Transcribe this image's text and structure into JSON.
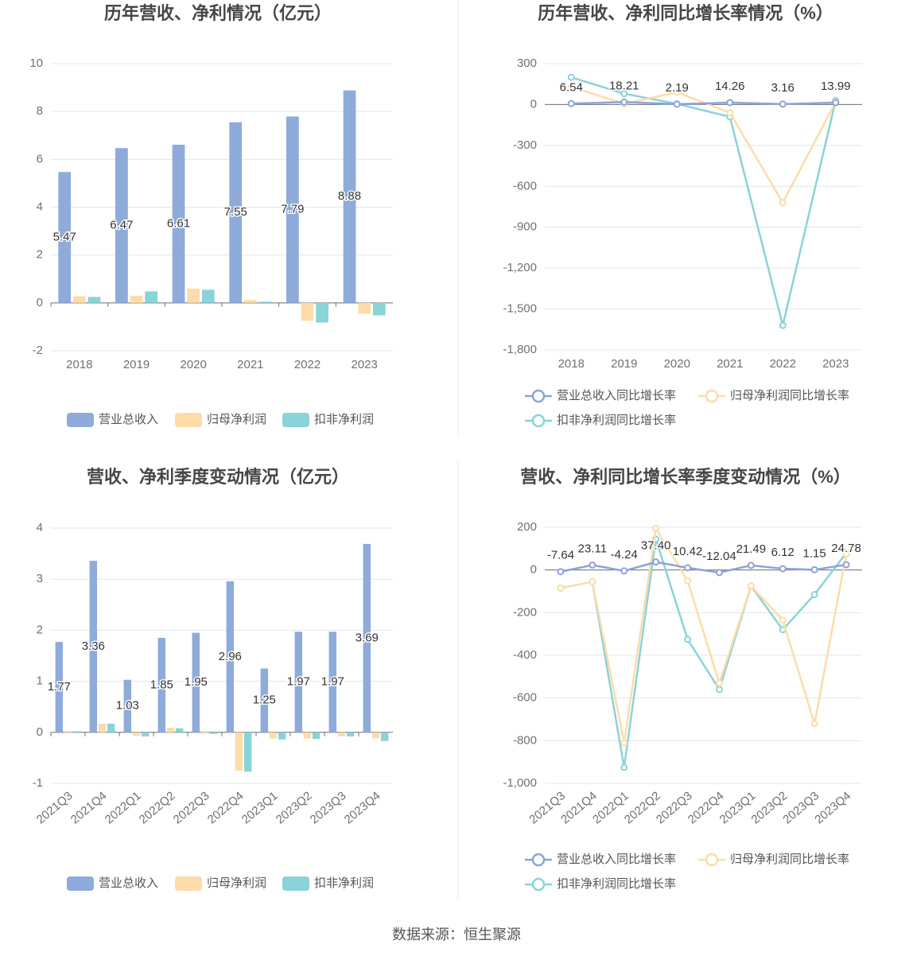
{
  "chart_data": [
    {
      "type": "bar",
      "title": "历年营收、净利情况（亿元）",
      "categories": [
        "2018",
        "2019",
        "2020",
        "2021",
        "2022",
        "2023"
      ],
      "ylim": [
        -2,
        10
      ],
      "yticks": [
        -2,
        0,
        2,
        4,
        6,
        8,
        10
      ],
      "grid": true,
      "series": [
        {
          "name": "营业总收入",
          "color": "#8eabda",
          "data_labels": true,
          "values": [
            5.47,
            6.47,
            6.61,
            7.55,
            7.79,
            8.88
          ]
        },
        {
          "name": "归母净利润",
          "color": "#fddcaa",
          "values": [
            0.28,
            0.3,
            0.6,
            0.12,
            -0.75,
            -0.45
          ]
        },
        {
          "name": "扣非净利润",
          "color": "#8ad3d8",
          "values": [
            0.25,
            0.48,
            0.55,
            0.05,
            -0.82,
            -0.52
          ]
        }
      ]
    },
    {
      "type": "line",
      "title": "历年营收、净利同比增长率情况（%）",
      "categories": [
        "2018",
        "2019",
        "2020",
        "2021",
        "2022",
        "2023"
      ],
      "ylim": [
        -1800,
        300
      ],
      "yticks": [
        {
          "value": -1800,
          "label": "-1,800"
        },
        {
          "value": -1500,
          "label": "-1,500"
        },
        {
          "value": -1200,
          "label": "-1,200"
        },
        -900,
        -600,
        -300,
        0,
        300
      ],
      "grid": true,
      "series": [
        {
          "name": "营业总收入同比增长率",
          "color": "#8ba4d8",
          "data_labels": true,
          "values": [
            6.54,
            18.21,
            2.19,
            14.26,
            3.16,
            13.99
          ]
        },
        {
          "name": "归母净利润同比增长率",
          "color": "#fddcaa",
          "values": [
            130,
            5,
            90,
            -60,
            -720,
            20
          ]
        },
        {
          "name": "扣非净利润同比增长率",
          "color": "#8ad3d8",
          "values": [
            200,
            80,
            5,
            -90,
            -1620,
            30
          ]
        }
      ]
    },
    {
      "type": "bar",
      "title": "营收、净利季度变动情况（亿元）",
      "categories": [
        "2021Q3",
        "2021Q4",
        "2022Q1",
        "2022Q2",
        "2022Q3",
        "2022Q4",
        "2023Q1",
        "2023Q2",
        "2023Q3",
        "2023Q4"
      ],
      "ylim": [
        -1,
        4
      ],
      "yticks": [
        -1,
        0,
        1,
        2,
        3,
        4
      ],
      "grid": true,
      "series": [
        {
          "name": "营业总收入",
          "color": "#8eabda",
          "data_labels": true,
          "values": [
            1.77,
            3.36,
            1.03,
            1.85,
            1.95,
            2.96,
            1.25,
            1.97,
            1.97,
            3.69
          ]
        },
        {
          "name": "归母净利润",
          "color": "#fddcaa",
          "values": [
            0.03,
            0.17,
            -0.07,
            0.09,
            0.02,
            -0.75,
            -0.12,
            -0.12,
            -0.08,
            -0.12
          ]
        },
        {
          "name": "扣非净利润",
          "color": "#8ad3d8",
          "values": [
            0.02,
            0.17,
            -0.08,
            0.08,
            -0.03,
            -0.77,
            -0.14,
            -0.13,
            -0.08,
            -0.17
          ]
        }
      ]
    },
    {
      "type": "line",
      "title": "营收、净利同比增长率季度变动情况（%）",
      "categories": [
        "2021Q3",
        "2021Q4",
        "2022Q1",
        "2022Q2",
        "2022Q3",
        "2022Q4",
        "2023Q1",
        "2023Q2",
        "2023Q3",
        "2023Q4"
      ],
      "ylim": [
        -1000,
        200
      ],
      "yticks": [
        {
          "value": -1000,
          "label": "-1,000"
        },
        -800,
        -600,
        -400,
        -200,
        0,
        200
      ],
      "grid": true,
      "series": [
        {
          "name": "营业总收入同比增长率",
          "color": "#8ba4d8",
          "data_labels": true,
          "values": [
            -7.64,
            23.11,
            -4.24,
            37.4,
            10.42,
            -12.04,
            21.49,
            6.12,
            1.15,
            24.78
          ],
          "value_labels": [
            "-7.64",
            "23.11",
            "-4.24",
            "37.40",
            "10.42",
            "-12.04",
            "21.49",
            "6.12",
            "1.15",
            "24.78"
          ]
        },
        {
          "name": "归母净利润同比增长率",
          "color": "#fddcaa",
          "values": [
            -85,
            -55,
            -810,
            195,
            -50,
            -530,
            -75,
            -235,
            -720,
            75
          ]
        },
        {
          "name": "扣非净利润同比增长率",
          "color": "#8ad3d8",
          "values": [
            -85,
            -55,
            -925,
            145,
            -325,
            -560,
            -75,
            -280,
            -115,
            80
          ]
        }
      ]
    }
  ],
  "source": "数据来源：恒生聚源"
}
